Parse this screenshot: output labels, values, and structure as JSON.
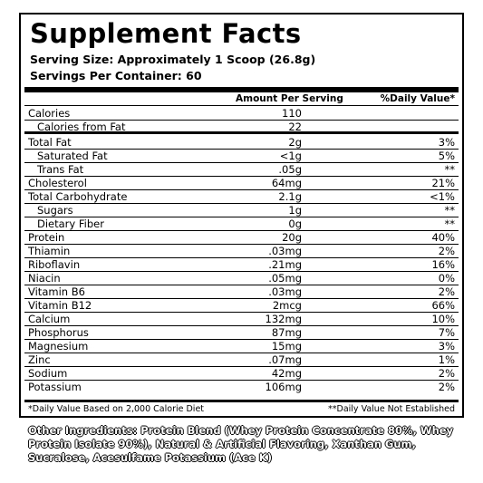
{
  "label": {
    "title": "Supplement Facts",
    "serving_size": "Serving Size: Approximately 1 Scoop (26.8g)",
    "servings_per_container": "Servings Per Container: 60",
    "amount_header": "Amount Per Serving",
    "dv_header": "%Daily Value*",
    "rows": [
      {
        "name": "Calories",
        "amount": "110",
        "dv": "",
        "indent": false
      },
      {
        "name": "Calories from Fat",
        "amount": "22",
        "dv": "",
        "indent": true
      },
      {
        "name": "Total Fat",
        "amount": "2g",
        "dv": "3%",
        "indent": false
      },
      {
        "name": "Saturated Fat",
        "amount": "<1g",
        "dv": "5%",
        "indent": true
      },
      {
        "name": "Trans Fat",
        "amount": ".05g",
        "dv": "**",
        "indent": true
      },
      {
        "name": "Cholesterol",
        "amount": "64mg",
        "dv": "21%",
        "indent": false
      },
      {
        "name": "Total Carbohydrate",
        "amount": "2.1g",
        "dv": "<1%",
        "indent": false
      },
      {
        "name": "Sugars",
        "amount": "1g",
        "dv": "**",
        "indent": true
      },
      {
        "name": "Dietary Fiber",
        "amount": "0g",
        "dv": "**",
        "indent": true
      },
      {
        "name": "Protein",
        "amount": "20g",
        "dv": "40%",
        "indent": false
      },
      {
        "name": "Thiamin",
        "amount": ".03mg",
        "dv": "2%",
        "indent": false
      },
      {
        "name": "Riboflavin",
        "amount": ".21mg",
        "dv": "16%",
        "indent": false
      },
      {
        "name": "Niacin",
        "amount": ".05mg",
        "dv": "0%",
        "indent": false
      },
      {
        "name": "Vitamin B6",
        "amount": ".03mg",
        "dv": "2%",
        "indent": false
      },
      {
        "name": "Vitamin B12",
        "amount": "2mcg",
        "dv": "66%",
        "indent": false
      },
      {
        "name": "Calcium",
        "amount": "132mg",
        "dv": "10%",
        "indent": false
      },
      {
        "name": "Phosphorus",
        "amount": "87mg",
        "dv": "7%",
        "indent": false
      },
      {
        "name": "Magnesium",
        "amount": "15mg",
        "dv": "3%",
        "indent": false
      },
      {
        "name": "Zinc",
        "amount": ".07mg",
        "dv": "1%",
        "indent": false
      },
      {
        "name": "Sodium",
        "amount": "42mg",
        "dv": "2%",
        "indent": false
      },
      {
        "name": "Potassium",
        "amount": "106mg",
        "dv": "2%",
        "indent": false
      }
    ],
    "footnote_left": "*Daily Value Based on 2,000 Calorie Diet",
    "footnote_right": "**Daily Value Not Established"
  },
  "ingredients": "Other Ingredients: Protein Blend (Whey Protein Concentrate 80%, Whey Protein Isolate 90%), Natural & Artificial Flavoring, Xanthan Gum, Sucralose, Acesulfame Potassium (Ace K)"
}
